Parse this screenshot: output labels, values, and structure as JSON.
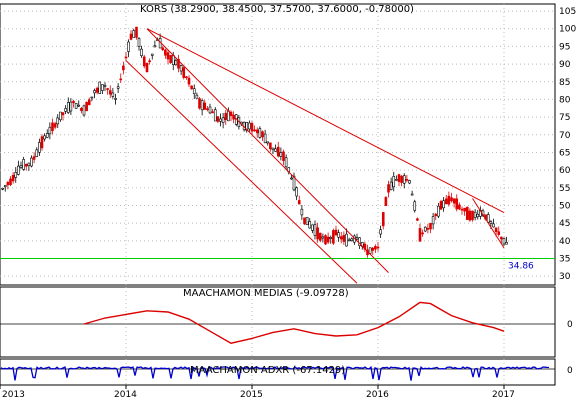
{
  "chart_data": [
    {
      "type": "candlestick",
      "title": "KORS (38.2900, 38.4500, 37.5700, 37.6000, -0.78000)",
      "x_ticks": [
        "2013",
        "2014",
        "2015",
        "2016",
        "2017"
      ],
      "y_ticks": [
        30,
        35,
        40,
        45,
        50,
        55,
        60,
        65,
        70,
        75,
        80,
        85,
        90,
        95,
        100,
        105
      ],
      "ylim": [
        27.5,
        107
      ],
      "grid": true,
      "annotation": "34.86",
      "reference_line": {
        "value": 35,
        "color": "#00cc00"
      },
      "trendlines": [
        {
          "from": [
            "2014-01",
            91
          ],
          "to": [
            "2015-11",
            28
          ]
        },
        {
          "from": [
            "2014-03",
            100
          ],
          "to": [
            "2016-02",
            31
          ]
        },
        {
          "from": [
            "2014-03",
            100
          ],
          "to": [
            "2017-01",
            48
          ]
        },
        {
          "from": [
            "2016-10",
            52
          ],
          "to": [
            "2017-01",
            38
          ]
        }
      ],
      "price_path": [
        {
          "t": "2012-09",
          "v": 56
        },
        {
          "t": "2012-10",
          "v": 60
        },
        {
          "t": "2012-11",
          "v": 56
        },
        {
          "t": "2012-12",
          "v": 55
        },
        {
          "t": "2013-01",
          "v": 54
        },
        {
          "t": "2013-02",
          "v": 57
        },
        {
          "t": "2013-03",
          "v": 61
        },
        {
          "t": "2013-04",
          "v": 62
        },
        {
          "t": "2013-05",
          "v": 68
        },
        {
          "t": "2013-06",
          "v": 72
        },
        {
          "t": "2013-07",
          "v": 76
        },
        {
          "t": "2013-08",
          "v": 79
        },
        {
          "t": "2013-09",
          "v": 77
        },
        {
          "t": "2013-10",
          "v": 82
        },
        {
          "t": "2013-11",
          "v": 84
        },
        {
          "t": "2013-12",
          "v": 80
        },
        {
          "t": "2014-01",
          "v": 92
        },
        {
          "t": "2014-01",
          "v": 98
        },
        {
          "t": "2014-02",
          "v": 99
        },
        {
          "t": "2014-02",
          "v": 93
        },
        {
          "t": "2014-03",
          "v": 89
        },
        {
          "t": "2014-04",
          "v": 97
        },
        {
          "t": "2014-05",
          "v": 92
        },
        {
          "t": "2014-06",
          "v": 90
        },
        {
          "t": "2014-07",
          "v": 85
        },
        {
          "t": "2014-08",
          "v": 79
        },
        {
          "t": "2014-09",
          "v": 77
        },
        {
          "t": "2014-10",
          "v": 74
        },
        {
          "t": "2014-11",
          "v": 76
        },
        {
          "t": "2014-12",
          "v": 73
        },
        {
          "t": "2015-01",
          "v": 72
        },
        {
          "t": "2015-02",
          "v": 70
        },
        {
          "t": "2015-03",
          "v": 66
        },
        {
          "t": "2015-04",
          "v": 64
        },
        {
          "t": "2015-05",
          "v": 56
        },
        {
          "t": "2015-06",
          "v": 46
        },
        {
          "t": "2015-07",
          "v": 43
        },
        {
          "t": "2015-08",
          "v": 40
        },
        {
          "t": "2015-09",
          "v": 42
        },
        {
          "t": "2015-10",
          "v": 40
        },
        {
          "t": "2015-11",
          "v": 41
        },
        {
          "t": "2015-12",
          "v": 37
        },
        {
          "t": "2016-01",
          "v": 38
        },
        {
          "t": "2016-02",
          "v": 55
        },
        {
          "t": "2016-03",
          "v": 58
        },
        {
          "t": "2016-04",
          "v": 57
        },
        {
          "t": "2016-05",
          "v": 42
        },
        {
          "t": "2016-06",
          "v": 44
        },
        {
          "t": "2016-07",
          "v": 50
        },
        {
          "t": "2016-08",
          "v": 52
        },
        {
          "t": "2016-09",
          "v": 49
        },
        {
          "t": "2016-10",
          "v": 47
        },
        {
          "t": "2016-11",
          "v": 48
        },
        {
          "t": "2016-12",
          "v": 44
        },
        {
          "t": "2017-01",
          "v": 40
        },
        {
          "t": "2017-01",
          "v": 38
        }
      ]
    },
    {
      "type": "line",
      "title": "MAACHAMON MEDIAS (-9.09728)",
      "y_ticks": [
        0
      ],
      "series": [
        {
          "color": "#dd0000",
          "values": [
            {
              "t": "2013-09",
              "v": 0.0
            },
            {
              "t": "2013-11",
              "v": 0.5
            },
            {
              "t": "2014-01",
              "v": 0.8
            },
            {
              "t": "2014-03",
              "v": 1.1
            },
            {
              "t": "2014-05",
              "v": 1.0
            },
            {
              "t": "2014-07",
              "v": 0.4
            },
            {
              "t": "2014-09",
              "v": -0.6
            },
            {
              "t": "2014-11",
              "v": -1.6
            },
            {
              "t": "2015-01",
              "v": -1.2
            },
            {
              "t": "2015-03",
              "v": -0.7
            },
            {
              "t": "2015-05",
              "v": -0.4
            },
            {
              "t": "2015-07",
              "v": -0.8
            },
            {
              "t": "2015-09",
              "v": -1.0
            },
            {
              "t": "2015-11",
              "v": -0.9
            },
            {
              "t": "2016-01",
              "v": -0.3
            },
            {
              "t": "2016-03",
              "v": 0.6
            },
            {
              "t": "2016-05",
              "v": 1.8
            },
            {
              "t": "2016-06",
              "v": 1.7
            },
            {
              "t": "2016-08",
              "v": 0.7
            },
            {
              "t": "2016-10",
              "v": 0.1
            },
            {
              "t": "2016-12",
              "v": -0.3
            },
            {
              "t": "2017-01",
              "v": -0.6
            }
          ]
        }
      ]
    },
    {
      "type": "line",
      "title": "MAACHAMON ADXR (-67.1429)",
      "y_ticks": [
        0
      ],
      "series": [
        {
          "color": "#0000cc",
          "values": []
        }
      ]
    }
  ]
}
